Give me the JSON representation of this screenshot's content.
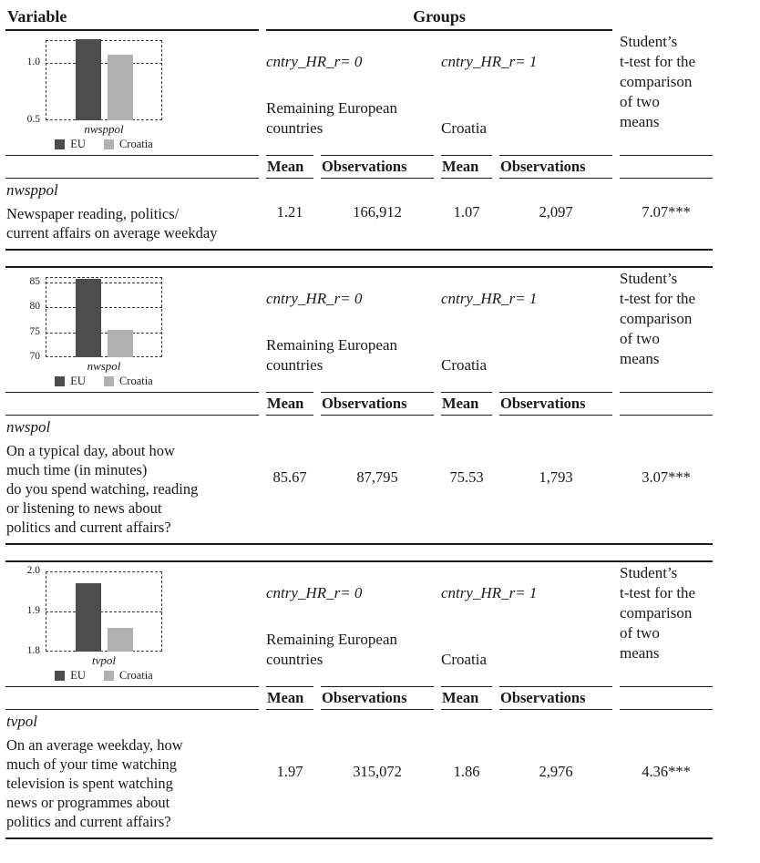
{
  "page_header": {
    "variable_label": "Variable",
    "groups_label": "Groups"
  },
  "column_headers": {
    "mean": "Mean",
    "observations": "Observations"
  },
  "ttest_header_lines": [
    "Student’s",
    "t-test for the",
    "comparison",
    "of two",
    "means"
  ],
  "groups": {
    "g0": {
      "var": "cntry_HR_r= 0",
      "name_lines": [
        "Remaining European",
        "countries"
      ]
    },
    "g1": {
      "var": "cntry_HR_r= 1",
      "name_lines": [
        "Croatia"
      ]
    }
  },
  "sections": [
    {
      "variable": "nwsppol",
      "description": [
        "Newspaper reading, politics/",
        "current affairs on average weekday"
      ],
      "stats": {
        "mean0": "1.21",
        "obs0": "166,912",
        "mean1": "1.07",
        "obs1": "2,097",
        "ttest": "7.07***"
      }
    },
    {
      "variable": "nwspol",
      "description": [
        "On a typical day, about how",
        "much time (in minutes)",
        "do you spend watching, reading",
        "or listening to news about",
        "politics and current affairs?"
      ],
      "stats": {
        "mean0": "85.67",
        "obs0": "87,795",
        "mean1": "75.53",
        "obs1": "1,793",
        "ttest": "3.07***"
      }
    },
    {
      "variable": "tvpol",
      "description": [
        "On an average weekday, how",
        "much of your time watching",
        "television is spent watching",
        "news or programmes about",
        "politics and current affairs?"
      ],
      "stats": {
        "mean0": "1.97",
        "obs0": "315,072",
        "mean1": "1.86",
        "obs1": "2,976",
        "ttest": "4.36***"
      }
    }
  ],
  "colors": {
    "eu_bar": "#4d4d4d",
    "croatia_bar": "#b0b0b0",
    "text": "#1a1a1a"
  },
  "chart_data": [
    {
      "type": "bar",
      "xlabel": "nwsppol",
      "categories": [
        "EU",
        "Croatia"
      ],
      "values": [
        1.21,
        1.07
      ],
      "ylim": [
        0.5,
        1.2
      ],
      "ytick_values": [
        0.5,
        1.0
      ],
      "ytick_labels": [
        "0.5",
        "1.0"
      ],
      "legend": [
        "EU",
        "Croatia"
      ],
      "legend_position": "bottom",
      "grid": "dashed",
      "bar_colors": [
        "#4d4d4d",
        "#b0b0b0"
      ]
    },
    {
      "type": "bar",
      "xlabel": "nwspol",
      "categories": [
        "EU",
        "Croatia"
      ],
      "values": [
        85.67,
        75.53
      ],
      "ylim": [
        70,
        86
      ],
      "ytick_values": [
        70,
        75,
        80,
        85
      ],
      "ytick_labels": [
        "70",
        "75",
        "80",
        "85"
      ],
      "legend": [
        "EU",
        "Croatia"
      ],
      "legend_position": "bottom",
      "grid": "dashed",
      "bar_colors": [
        "#4d4d4d",
        "#b0b0b0"
      ]
    },
    {
      "type": "bar",
      "xlabel": "tvpol",
      "categories": [
        "EU",
        "Croatia"
      ],
      "values": [
        1.97,
        1.86
      ],
      "ylim": [
        1.8,
        2.0
      ],
      "ytick_values": [
        1.8,
        1.9,
        2.0
      ],
      "ytick_labels": [
        "1.8",
        "1.9",
        "2.0"
      ],
      "legend": [
        "EU",
        "Croatia"
      ],
      "legend_position": "bottom",
      "grid": "dashed",
      "bar_colors": [
        "#4d4d4d",
        "#b0b0b0"
      ]
    }
  ]
}
